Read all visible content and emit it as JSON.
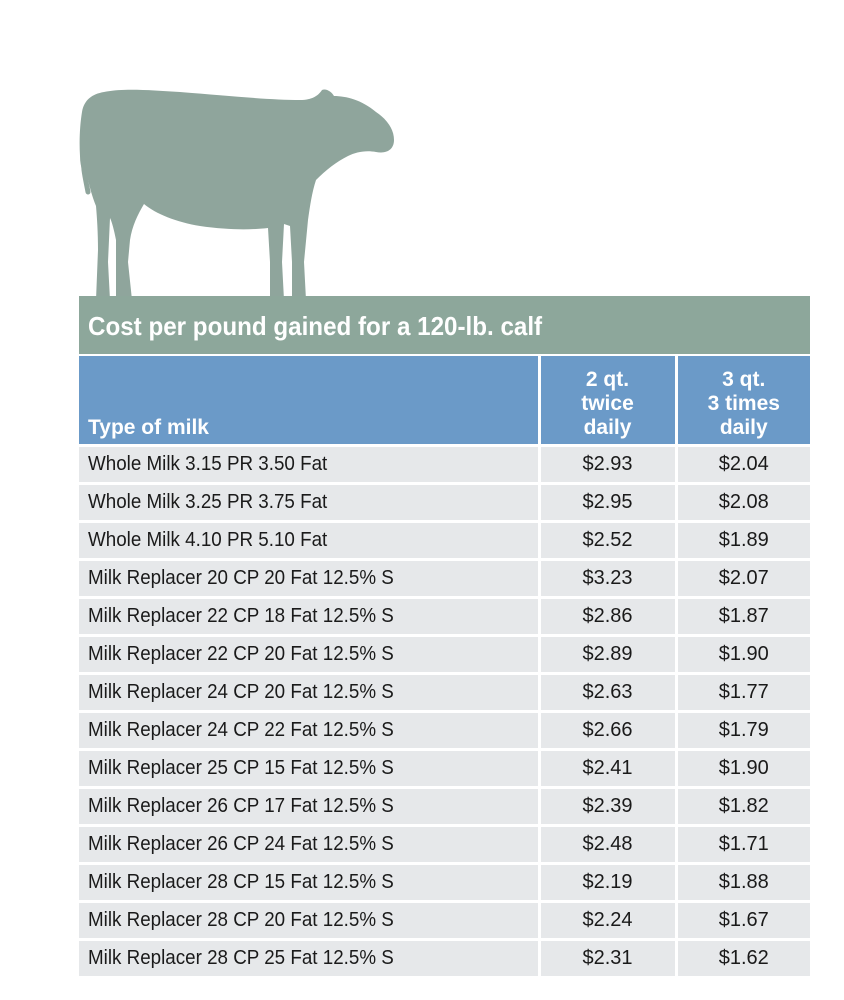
{
  "table": {
    "title": "Cost per pound gained for a 120-lb. calf",
    "headers": {
      "type": "Type of milk",
      "col2": [
        "2 qt.",
        "twice",
        "daily"
      ],
      "col3": [
        "3 qt.",
        "3 times",
        "daily"
      ]
    },
    "rows": [
      {
        "name": "Whole Milk 3.15 PR 3.50 Fat",
        "twice": "$2.93",
        "three": "$2.04"
      },
      {
        "name": "Whole Milk 3.25 PR 3.75 Fat",
        "twice": "$2.95",
        "three": "$2.08"
      },
      {
        "name": "Whole Milk 4.10 PR 5.10 Fat",
        "twice": "$2.52",
        "three": "$1.89"
      },
      {
        "name": "Milk Replacer 20 CP 20 Fat 12.5% S",
        "twice": "$3.23",
        "three": "$2.07"
      },
      {
        "name": "Milk Replacer 22 CP 18 Fat 12.5% S",
        "twice": "$2.86",
        "three": "$1.87"
      },
      {
        "name": "Milk Replacer 22 CP 20 Fat 12.5% S",
        "twice": "$2.89",
        "three": "$1.90"
      },
      {
        "name": "Milk Replacer 24 CP 20 Fat 12.5% S",
        "twice": "$2.63",
        "three": "$1.77"
      },
      {
        "name": "Milk Replacer 24 CP 22 Fat 12.5% S",
        "twice": "$2.66",
        "three": "$1.79"
      },
      {
        "name": "Milk Replacer 25 CP 15 Fat 12.5% S",
        "twice": "$2.41",
        "three": "$1.90"
      },
      {
        "name": "Milk Replacer 26 CP 17 Fat 12.5% S",
        "twice": "$2.39",
        "three": "$1.82"
      },
      {
        "name": "Milk Replacer 26 CP 24 Fat 12.5% S",
        "twice": "$2.48",
        "three": "$1.71"
      },
      {
        "name": "Milk Replacer 28 CP 15 Fat 12.5% S",
        "twice": "$2.19",
        "three": "$1.88"
      },
      {
        "name": "Milk Replacer 28 CP 20 Fat 12.5% S",
        "twice": "$2.24",
        "three": "$1.67"
      },
      {
        "name": "Milk Replacer 28 CP 25 Fat 12.5% S",
        "twice": "$2.31",
        "three": "$1.62"
      }
    ]
  },
  "colors": {
    "title_bar": "#8da79b",
    "header": "#6b9ac8",
    "row": "#e6e8ea",
    "calf": "#8fa59c"
  },
  "illustration": "calf-silhouette-icon"
}
